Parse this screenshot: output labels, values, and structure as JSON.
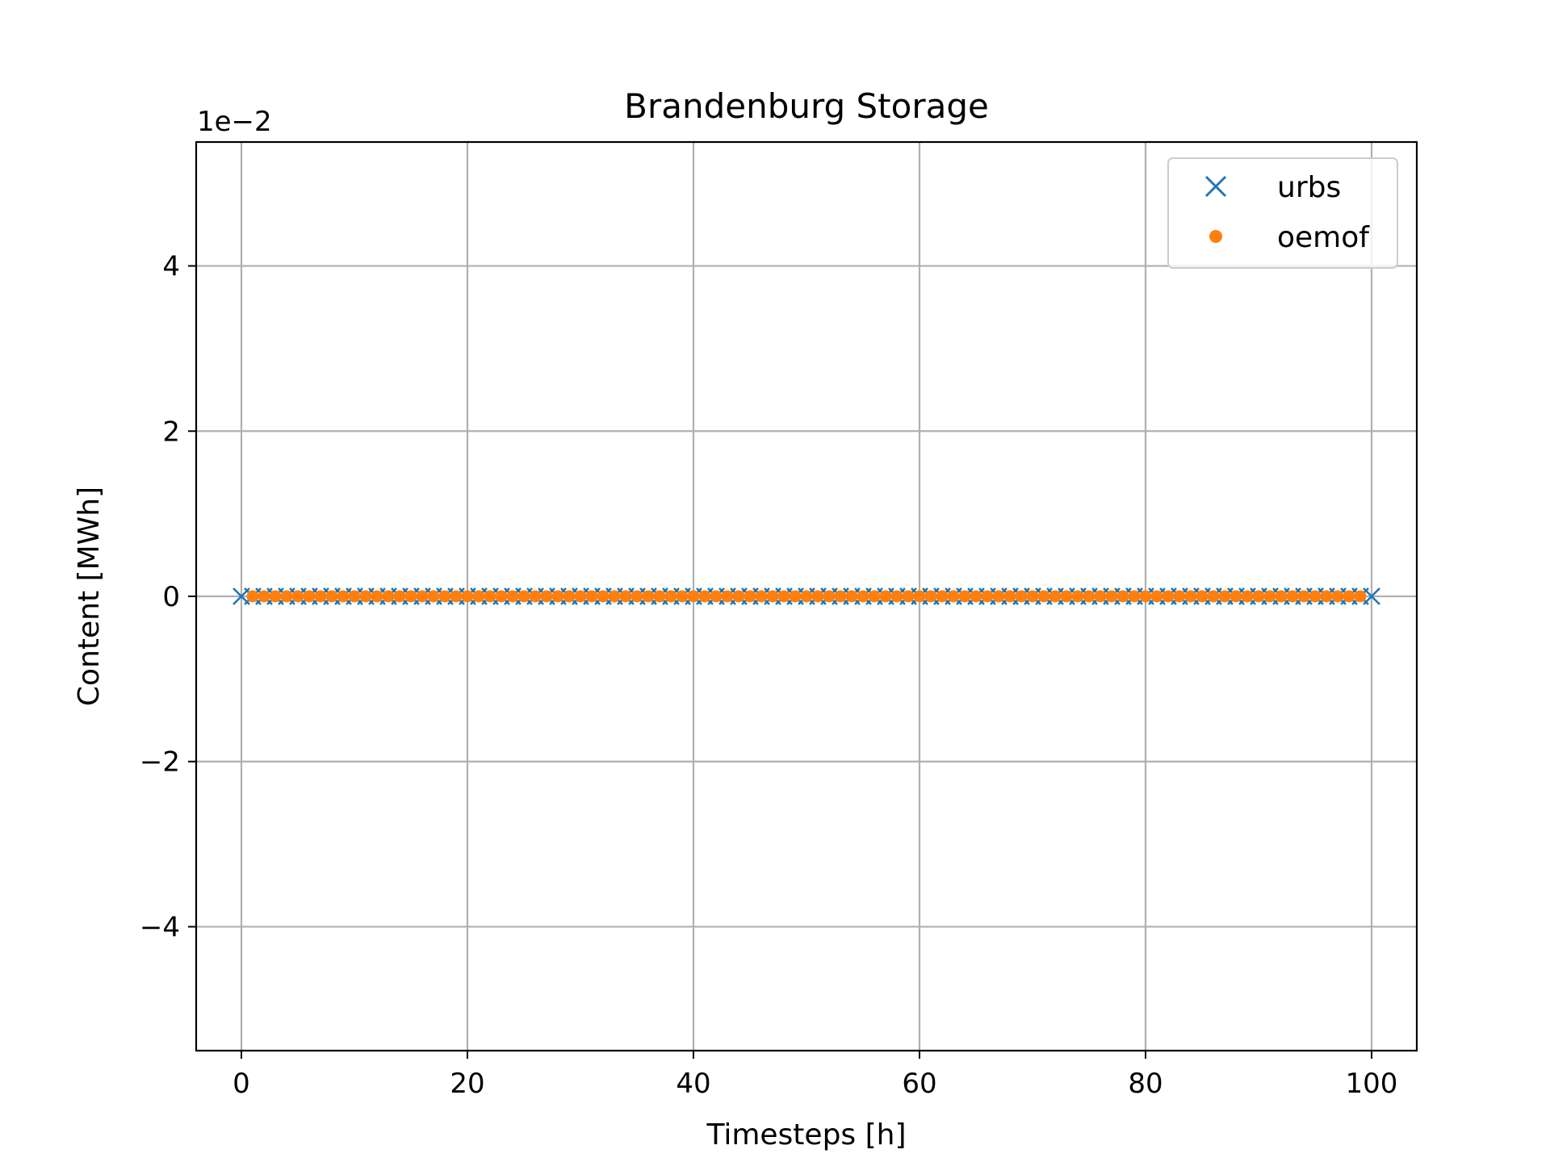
{
  "chart_data": {
    "type": "scatter",
    "title": "Brandenburg Storage",
    "xlabel": "Timesteps [h]",
    "ylabel": "Content [MWh]",
    "y_offset_label": "1e−2",
    "xlim": [
      -4,
      104
    ],
    "ylim": [
      -0.055,
      0.055
    ],
    "x_ticks": [
      0,
      20,
      40,
      60,
      80,
      100
    ],
    "x_tick_labels": [
      "0",
      "20",
      "40",
      "60",
      "80",
      "100"
    ],
    "y_ticks": [
      -0.04,
      -0.02,
      0,
      0.02,
      0.04
    ],
    "y_tick_labels": [
      "−4",
      "−2",
      "0",
      "2",
      "4"
    ],
    "grid": true,
    "legend_position": "top-right",
    "series": [
      {
        "name": "urbs",
        "marker": "x",
        "color": "#1f77b4",
        "x_start": 0,
        "x_end": 100,
        "x_step": 1,
        "y_constant": 0
      },
      {
        "name": "oemof",
        "marker": "dot",
        "color": "#ff7f0e",
        "x_start": 1,
        "x_end": 99,
        "x_step": 1,
        "y_constant": 0
      }
    ]
  }
}
